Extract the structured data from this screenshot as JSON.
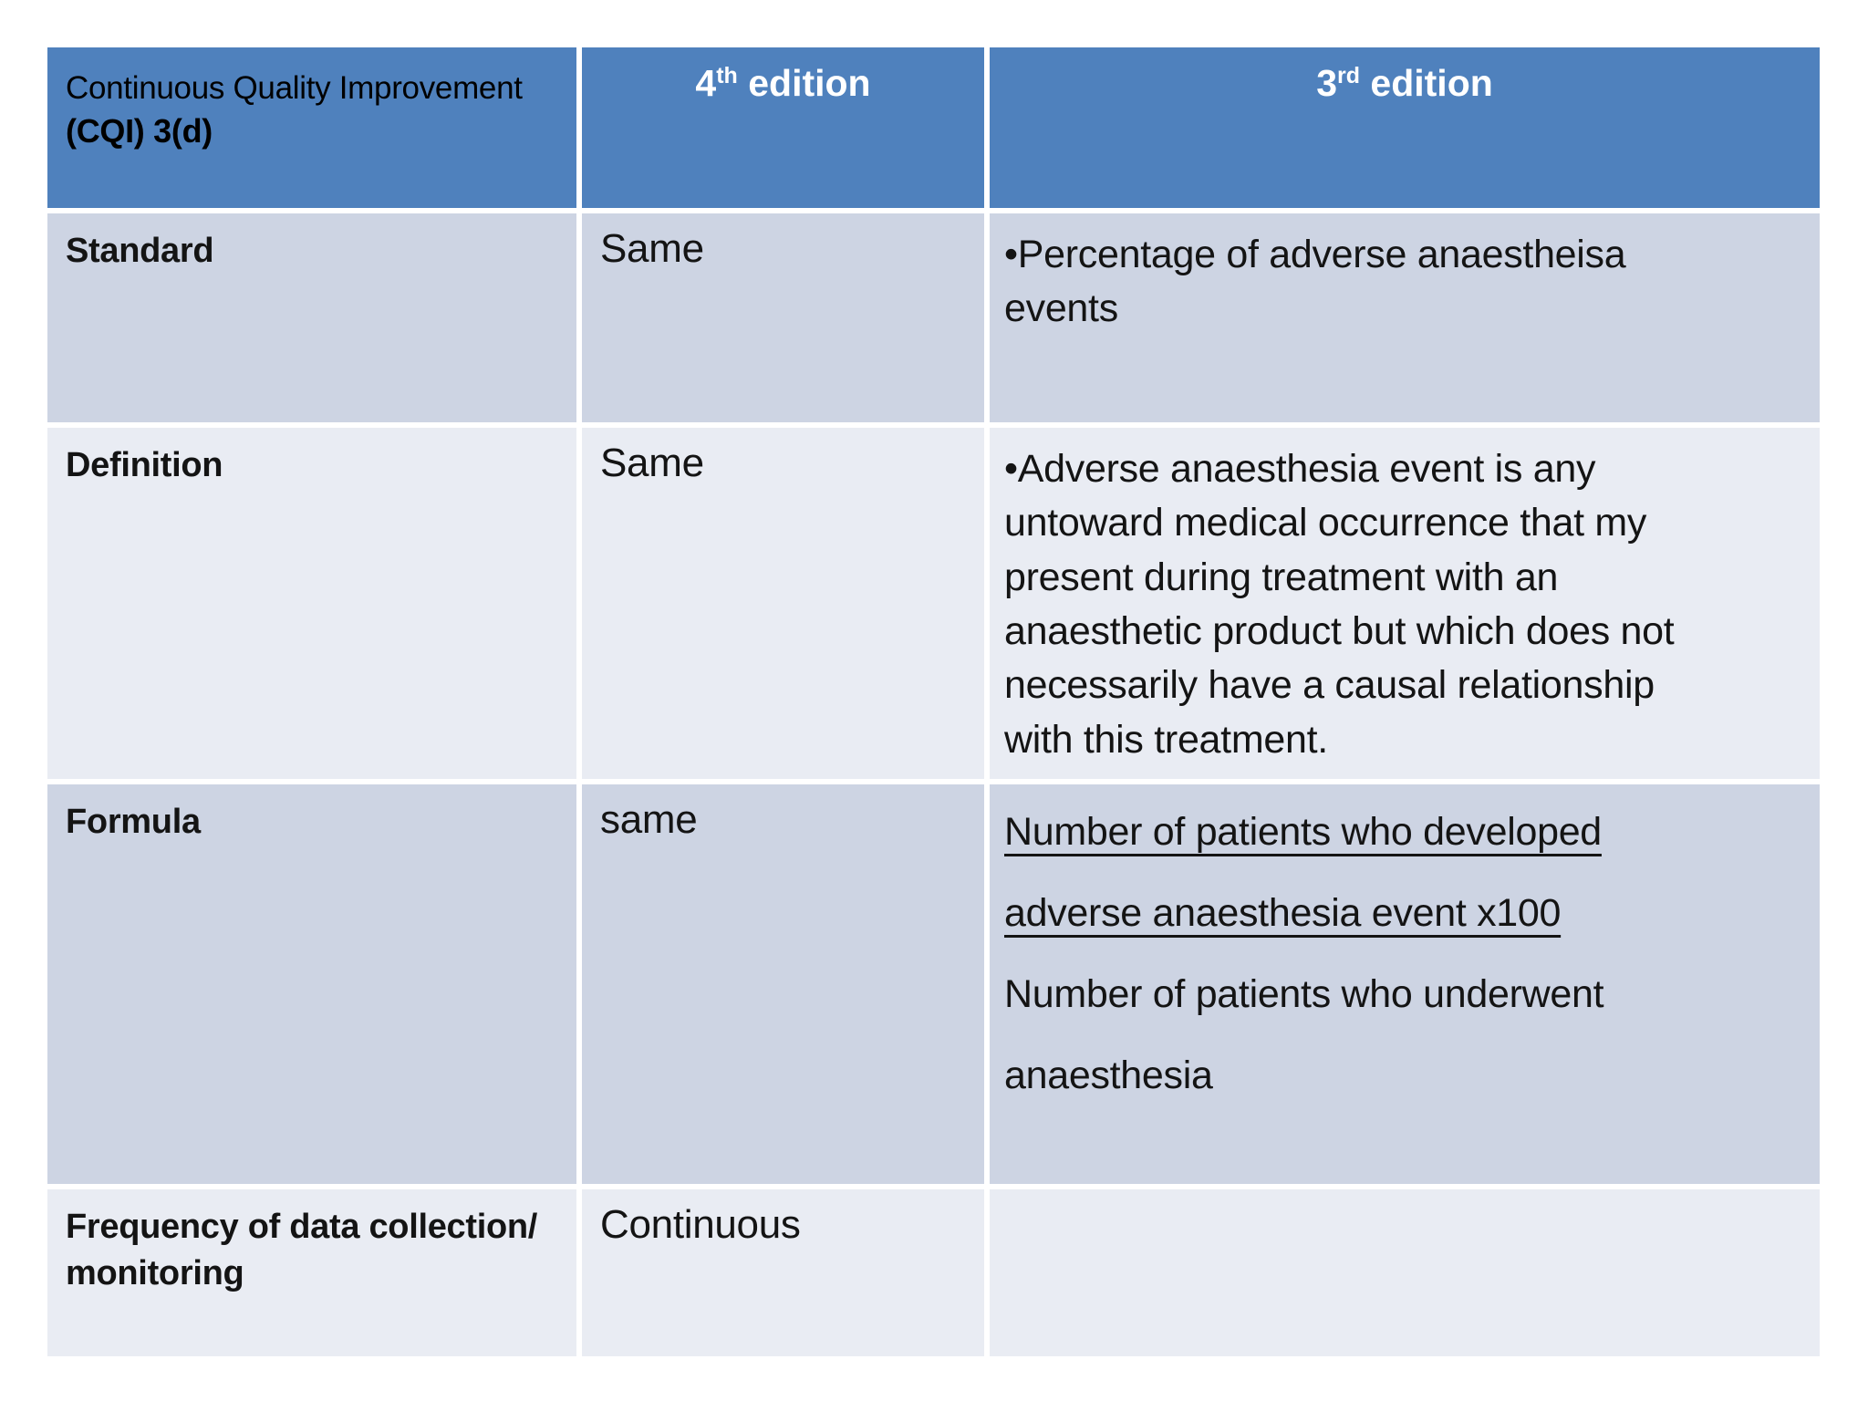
{
  "colors": {
    "page_bg": "#ffffff",
    "header_bg": "#4f81bd",
    "band_dark": "#cdd4e3",
    "band_light": "#e9ecf3",
    "header_text": "#ffffff",
    "body_text": "#141414",
    "grid_line": "#ffffff"
  },
  "table": {
    "header": {
      "col1_line1": "Continuous Quality Improvement",
      "col1_line2": "(CQI) 3(d)",
      "col2_num": "4",
      "col2_sup": "th",
      "col2_rest": " edition",
      "col3_num": "3",
      "col3_sup": "rd",
      "col3_rest": " edition"
    },
    "rows": [
      {
        "label": "Standard",
        "edition4": "Same",
        "edition3_lines": [
          "•Percentage of adverse anaestheisa",
          "events"
        ]
      },
      {
        "label": "Definition",
        "edition4": "Same",
        "edition3_lines": [
          "•Adverse anaesthesia event is any",
          "untoward medical occurrence that my",
          "present during  treatment with an",
          "anaesthetic product but which does not",
          "necessarily  have a causal relationship",
          "with this treatment."
        ]
      },
      {
        "label": "Formula",
        "edition4": "same",
        "edition3_lines_underlined": [
          "Number of patients who developed",
          "adverse anaesthesia event x100"
        ],
        "edition3_lines": [
          "Number of patients who underwent",
          "anaesthesia"
        ]
      },
      {
        "label_line1": "Frequency  of data collection/",
        "label_line2": "monitoring",
        "edition4": "Continuous",
        "edition3_lines": []
      }
    ]
  }
}
